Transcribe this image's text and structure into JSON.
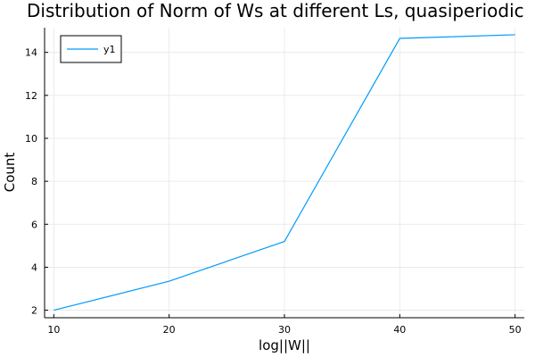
{
  "chart_data": {
    "type": "line",
    "title": "Distribution of Norm of Ws at different Ls, quasiperiodic",
    "xlabel": "log||W||",
    "ylabel": "Count",
    "x": [
      10,
      20,
      30,
      40,
      50
    ],
    "series": [
      {
        "name": "y1",
        "values": [
          2.0,
          3.35,
          5.2,
          14.65,
          14.82
        ],
        "color": "#009af9"
      }
    ],
    "xlim": [
      9.2,
      50.8
    ],
    "ylim": [
      1.65,
      15.15
    ],
    "xticks": [
      10,
      20,
      30,
      40,
      50
    ],
    "yticks": [
      2,
      4,
      6,
      8,
      10,
      12,
      14
    ],
    "grid": true,
    "legend_position": "top-left"
  }
}
